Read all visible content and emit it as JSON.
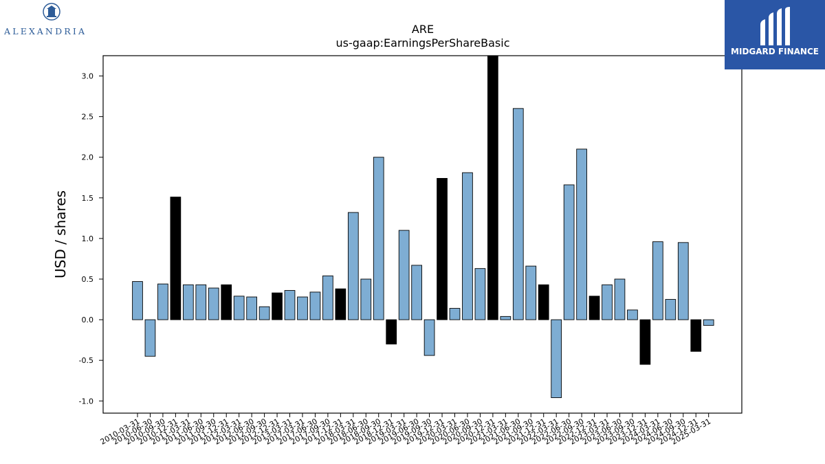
{
  "branding": {
    "left_logo_text": "ALEXANDRIA",
    "right_logo_text": "MIDGARD FINANCE",
    "right_logo_bg": "#2a56a6"
  },
  "chart_data": {
    "type": "bar",
    "title": "ARE",
    "subtitle": "us-gaap:EarningsPerShareBasic",
    "xlabel": "",
    "ylabel": "USD / shares",
    "ylim": [
      -1.15,
      3.25
    ],
    "yticks": [
      -1.0,
      -0.5,
      0.0,
      0.5,
      1.0,
      1.5,
      2.0,
      2.5,
      3.0
    ],
    "grid": false,
    "legend": "none",
    "colors": {
      "quarter": "#7eadd3",
      "fiscal_year_end": "#000000",
      "edge": "#000000"
    },
    "x": [
      "2010-03-31",
      "2010-06-30",
      "2010-09-30",
      "2010-12-31",
      "2011-03-31",
      "2011-06-30",
      "2011-09-30",
      "2011-12-31",
      "2012-03-31",
      "2012-06-30",
      "2012-09-30",
      "2012-12-31",
      "2013-03-31",
      "2017-03-31",
      "2017-06-30",
      "2017-09-30",
      "2017-12-31",
      "2018-03-31",
      "2018-06-30",
      "2018-09-30",
      "2018-12-31",
      "2019-03-31",
      "2019-06-30",
      "2019-09-30",
      "2019-12-31",
      "2020-03-31",
      "2020-06-30",
      "2020-09-30",
      "2020-12-31",
      "2021-03-31",
      "2021-06-30",
      "2021-09-30",
      "2021-12-31",
      "2022-03-31",
      "2022-06-30",
      "2022-09-30",
      "2022-12-31",
      "2023-03-31",
      "2023-06-30",
      "2023-09-30",
      "2023-12-31",
      "2024-03-31",
      "2024-06-30",
      "2024-09-30",
      "2024-12-31",
      "2025-03-31"
    ],
    "values": [
      0.47,
      -0.45,
      0.44,
      1.51,
      0.43,
      0.43,
      0.39,
      0.43,
      0.29,
      0.28,
      0.16,
      0.33,
      0.36,
      0.28,
      0.34,
      0.54,
      0.38,
      1.32,
      0.5,
      2.0,
      -0.3,
      1.1,
      0.67,
      -0.44,
      1.74,
      0.14,
      1.81,
      0.63,
      3.3,
      0.04,
      2.6,
      0.66,
      0.43,
      -0.96,
      1.66,
      2.1,
      0.29,
      0.43,
      0.5,
      0.12,
      -0.55,
      0.96,
      0.25,
      0.95,
      -0.39,
      -0.07
    ],
    "fiscal_year_end": [
      false,
      false,
      false,
      true,
      false,
      false,
      false,
      true,
      false,
      false,
      false,
      true,
      false,
      false,
      false,
      false,
      true,
      false,
      false,
      false,
      true,
      false,
      false,
      false,
      true,
      false,
      false,
      false,
      true,
      false,
      false,
      false,
      true,
      false,
      false,
      false,
      true,
      false,
      false,
      false,
      true,
      false,
      false,
      false,
      true,
      false
    ]
  }
}
